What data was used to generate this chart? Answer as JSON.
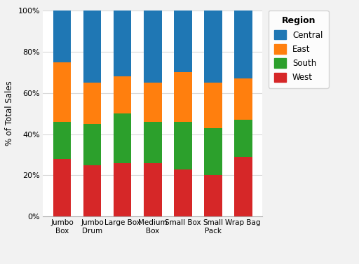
{
  "categories": [
    "Jumbo\nBox",
    "Jumbo\nDrum",
    "Large Box",
    "Medium\nBox",
    "Small Box",
    "Small\nPack",
    "Wrap Bag"
  ],
  "regions": [
    "West",
    "South",
    "East",
    "Central"
  ],
  "colors": {
    "West": "#d62728",
    "South": "#2ca02c",
    "East": "#ff7f0e",
    "Central": "#1f77b4"
  },
  "values": {
    "West": [
      0.28,
      0.25,
      0.26,
      0.26,
      0.23,
      0.2,
      0.29
    ],
    "South": [
      0.18,
      0.2,
      0.24,
      0.2,
      0.23,
      0.23,
      0.18
    ],
    "East": [
      0.29,
      0.2,
      0.18,
      0.19,
      0.24,
      0.22,
      0.2
    ],
    "Central": [
      0.25,
      0.35,
      0.32,
      0.35,
      0.3,
      0.35,
      0.33
    ]
  },
  "ylabel": "% of Total Sales",
  "legend_title": "Region",
  "legend_labels": [
    "Central",
    "East",
    "South",
    "West"
  ],
  "background_color": "#f2f2f2",
  "plot_bg_color": "#ffffff",
  "ylim": [
    0,
    1
  ],
  "yticks": [
    0,
    0.2,
    0.4,
    0.6,
    0.8,
    1.0
  ],
  "ytick_labels": [
    "0%",
    "20%",
    "40%",
    "60%",
    "80%",
    "100%"
  ],
  "bar_width": 0.6,
  "grid_color": "#d9d9d9"
}
